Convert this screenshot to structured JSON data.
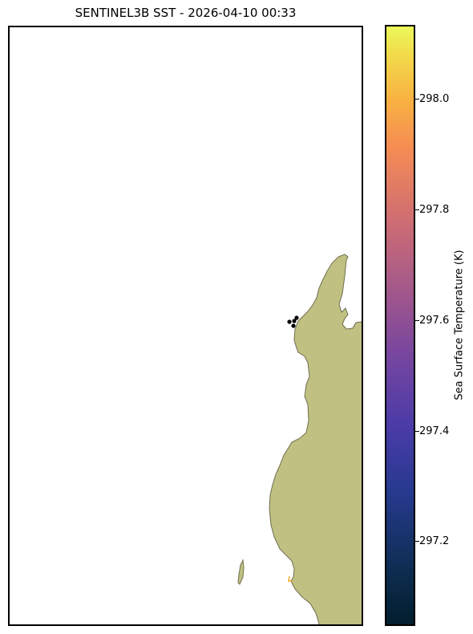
{
  "title": "SENTINEL3B SST - 2026-04-10 00:33",
  "colorbar": {
    "label": "Sea Surface Temperature (K)",
    "ticks": [
      {
        "label": "298.0"
      },
      {
        "label": "297.8"
      },
      {
        "label": "297.6"
      },
      {
        "label": "297.4"
      },
      {
        "label": "297.2"
      }
    ],
    "colors": [
      "#031e2d",
      "#263a8e",
      "#77469f",
      "#d06e72",
      "#f68d53",
      "#eaf95b"
    ]
  },
  "map": {
    "land_color": "#bfc082",
    "coast_color": "#6f6f4f",
    "observation_dot_color": "#000000",
    "warm_marker_color": "#f6a623"
  }
}
